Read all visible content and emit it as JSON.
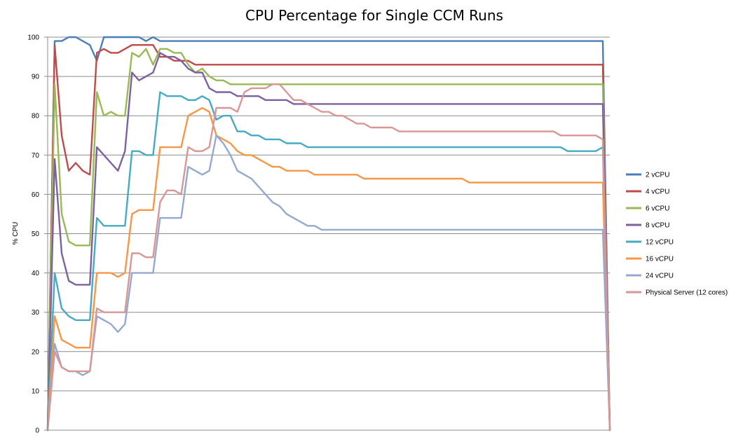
{
  "chart_data": {
    "type": "line",
    "title": "CPU Percentage for Single CCM Runs",
    "xlabel": "",
    "ylabel": "% CPU",
    "ylim": [
      0,
      100
    ],
    "yticks": [
      0,
      10,
      20,
      30,
      40,
      50,
      60,
      70,
      80,
      90,
      100
    ],
    "grid": true,
    "legend_position": "right",
    "x": [
      0,
      1,
      2,
      3,
      4,
      5,
      6,
      7,
      8,
      9,
      10,
      11,
      12,
      13,
      14,
      15,
      16,
      17,
      18,
      19,
      20,
      21,
      22,
      23,
      24,
      25,
      26,
      27,
      28,
      29,
      30,
      31,
      32,
      33,
      34,
      35,
      36,
      37,
      38,
      39,
      40,
      41,
      42,
      43,
      44,
      45,
      46,
      47,
      48,
      49,
      50,
      51,
      52,
      53,
      54,
      55,
      56,
      57,
      58,
      59,
      60,
      61,
      62,
      63,
      64,
      65,
      66,
      67,
      68,
      69,
      70,
      71,
      72,
      73,
      74,
      75,
      76,
      77,
      78,
      79,
      80
    ],
    "series": [
      {
        "name": "2 vCPU",
        "color": "#4a7ebb",
        "values": [
          0,
          99,
          99,
          100,
          100,
          99,
          98,
          94,
          100,
          100,
          100,
          100,
          100,
          100,
          99,
          100,
          99,
          99,
          99,
          99,
          99,
          99,
          99,
          99,
          99,
          99,
          99,
          99,
          99,
          99,
          99,
          99,
          99,
          99,
          99,
          99,
          99,
          99,
          99,
          99,
          99,
          99,
          99,
          99,
          99,
          99,
          99,
          99,
          99,
          99,
          99,
          99,
          99,
          99,
          99,
          99,
          99,
          99,
          99,
          99,
          99,
          99,
          99,
          99,
          99,
          99,
          99,
          99,
          99,
          99,
          99,
          99,
          99,
          99,
          99,
          99,
          99,
          99,
          99,
          99,
          0
        ]
      },
      {
        "name": "4 vCPU",
        "color": "#be4b48",
        "values": [
          0,
          98,
          75,
          66,
          68,
          66,
          65,
          96,
          97,
          96,
          96,
          97,
          98,
          98,
          98,
          98,
          95,
          95,
          94,
          94,
          94,
          93,
          93,
          93,
          93,
          93,
          93,
          93,
          93,
          93,
          93,
          93,
          93,
          93,
          93,
          93,
          93,
          93,
          93,
          93,
          93,
          93,
          93,
          93,
          93,
          93,
          93,
          93,
          93,
          93,
          93,
          93,
          93,
          93,
          93,
          93,
          93,
          93,
          93,
          93,
          93,
          93,
          93,
          93,
          93,
          93,
          93,
          93,
          93,
          93,
          93,
          93,
          93,
          93,
          93,
          93,
          93,
          93,
          93,
          93,
          0
        ]
      },
      {
        "name": "6 vCPU",
        "color": "#98b954",
        "values": [
          0,
          88,
          55,
          48,
          47,
          47,
          47,
          86,
          80,
          81,
          80,
          80,
          96,
          95,
          97,
          93,
          97,
          97,
          96,
          96,
          93,
          91,
          92,
          90,
          89,
          89,
          88,
          88,
          88,
          88,
          88,
          88,
          88,
          88,
          88,
          88,
          88,
          88,
          88,
          88,
          88,
          88,
          88,
          88,
          88,
          88,
          88,
          88,
          88,
          88,
          88,
          88,
          88,
          88,
          88,
          88,
          88,
          88,
          88,
          88,
          88,
          88,
          88,
          88,
          88,
          88,
          88,
          88,
          88,
          88,
          88,
          88,
          88,
          88,
          88,
          88,
          88,
          88,
          88,
          88,
          0
        ]
      },
      {
        "name": "8 vCPU",
        "color": "#7d60a0",
        "values": [
          0,
          69,
          45,
          38,
          37,
          37,
          37,
          72,
          70,
          68,
          66,
          71,
          91,
          89,
          90,
          91,
          96,
          95,
          95,
          94,
          92,
          91,
          91,
          87,
          86,
          86,
          86,
          85,
          85,
          85,
          85,
          84,
          84,
          84,
          84,
          83,
          83,
          83,
          83,
          83,
          83,
          83,
          83,
          83,
          83,
          83,
          83,
          83,
          83,
          83,
          83,
          83,
          83,
          83,
          83,
          83,
          83,
          83,
          83,
          83,
          83,
          83,
          83,
          83,
          83,
          83,
          83,
          83,
          83,
          83,
          83,
          83,
          83,
          83,
          83,
          83,
          83,
          83,
          83,
          83,
          0
        ]
      },
      {
        "name": "12 vCPU",
        "color": "#46aac5",
        "values": [
          0,
          40,
          31,
          29,
          28,
          28,
          28,
          54,
          52,
          52,
          52,
          52,
          71,
          71,
          70,
          70,
          86,
          85,
          85,
          85,
          84,
          84,
          85,
          84,
          79,
          80,
          80,
          76,
          76,
          75,
          75,
          74,
          74,
          74,
          73,
          73,
          73,
          72,
          72,
          72,
          72,
          72,
          72,
          72,
          72,
          72,
          72,
          72,
          72,
          72,
          72,
          72,
          72,
          72,
          72,
          72,
          72,
          72,
          72,
          72,
          72,
          72,
          72,
          72,
          72,
          72,
          72,
          72,
          72,
          72,
          72,
          72,
          72,
          72,
          71,
          71,
          71,
          71,
          71,
          72,
          0
        ]
      },
      {
        "name": "16 vCPU",
        "color": "#f79646",
        "values": [
          0,
          29,
          23,
          22,
          21,
          21,
          21,
          40,
          40,
          40,
          39,
          40,
          55,
          56,
          56,
          56,
          72,
          72,
          72,
          72,
          80,
          81,
          82,
          81,
          75,
          74,
          73,
          71,
          70,
          70,
          69,
          68,
          67,
          67,
          66,
          66,
          66,
          66,
          65,
          65,
          65,
          65,
          65,
          65,
          65,
          64,
          64,
          64,
          64,
          64,
          64,
          64,
          64,
          64,
          64,
          64,
          64,
          64,
          64,
          64,
          63,
          63,
          63,
          63,
          63,
          63,
          63,
          63,
          63,
          63,
          63,
          63,
          63,
          63,
          63,
          63,
          63,
          63,
          63,
          63,
          0
        ]
      },
      {
        "name": "24 vCPU",
        "color": "#93a9cf",
        "values": [
          0,
          22,
          16,
          15,
          15,
          14,
          15,
          29,
          28,
          27,
          25,
          27,
          40,
          40,
          40,
          40,
          54,
          54,
          54,
          54,
          67,
          66,
          65,
          66,
          75,
          73,
          70,
          66,
          65,
          64,
          62,
          60,
          58,
          57,
          55,
          54,
          53,
          52,
          52,
          51,
          51,
          51,
          51,
          51,
          51,
          51,
          51,
          51,
          51,
          51,
          51,
          51,
          51,
          51,
          51,
          51,
          51,
          51,
          51,
          51,
          51,
          51,
          51,
          51,
          51,
          51,
          51,
          51,
          51,
          51,
          51,
          51,
          51,
          51,
          51,
          51,
          51,
          51,
          51,
          51,
          0
        ]
      },
      {
        "name": "Physical Server (12 cores)",
        "color": "#d99694",
        "values": [
          0,
          20,
          16,
          15,
          15,
          15,
          15,
          31,
          30,
          30,
          30,
          30,
          45,
          45,
          44,
          44,
          58,
          61,
          61,
          60,
          72,
          71,
          71,
          72,
          82,
          82,
          82,
          81,
          86,
          87,
          87,
          87,
          88,
          88,
          86,
          84,
          84,
          83,
          82,
          81,
          81,
          80,
          80,
          79,
          78,
          78,
          77,
          77,
          77,
          77,
          76,
          76,
          76,
          76,
          76,
          76,
          76,
          76,
          76,
          76,
          76,
          76,
          76,
          76,
          76,
          76,
          76,
          76,
          76,
          76,
          76,
          76,
          76,
          75,
          75,
          75,
          75,
          75,
          75,
          74,
          0
        ]
      }
    ]
  }
}
